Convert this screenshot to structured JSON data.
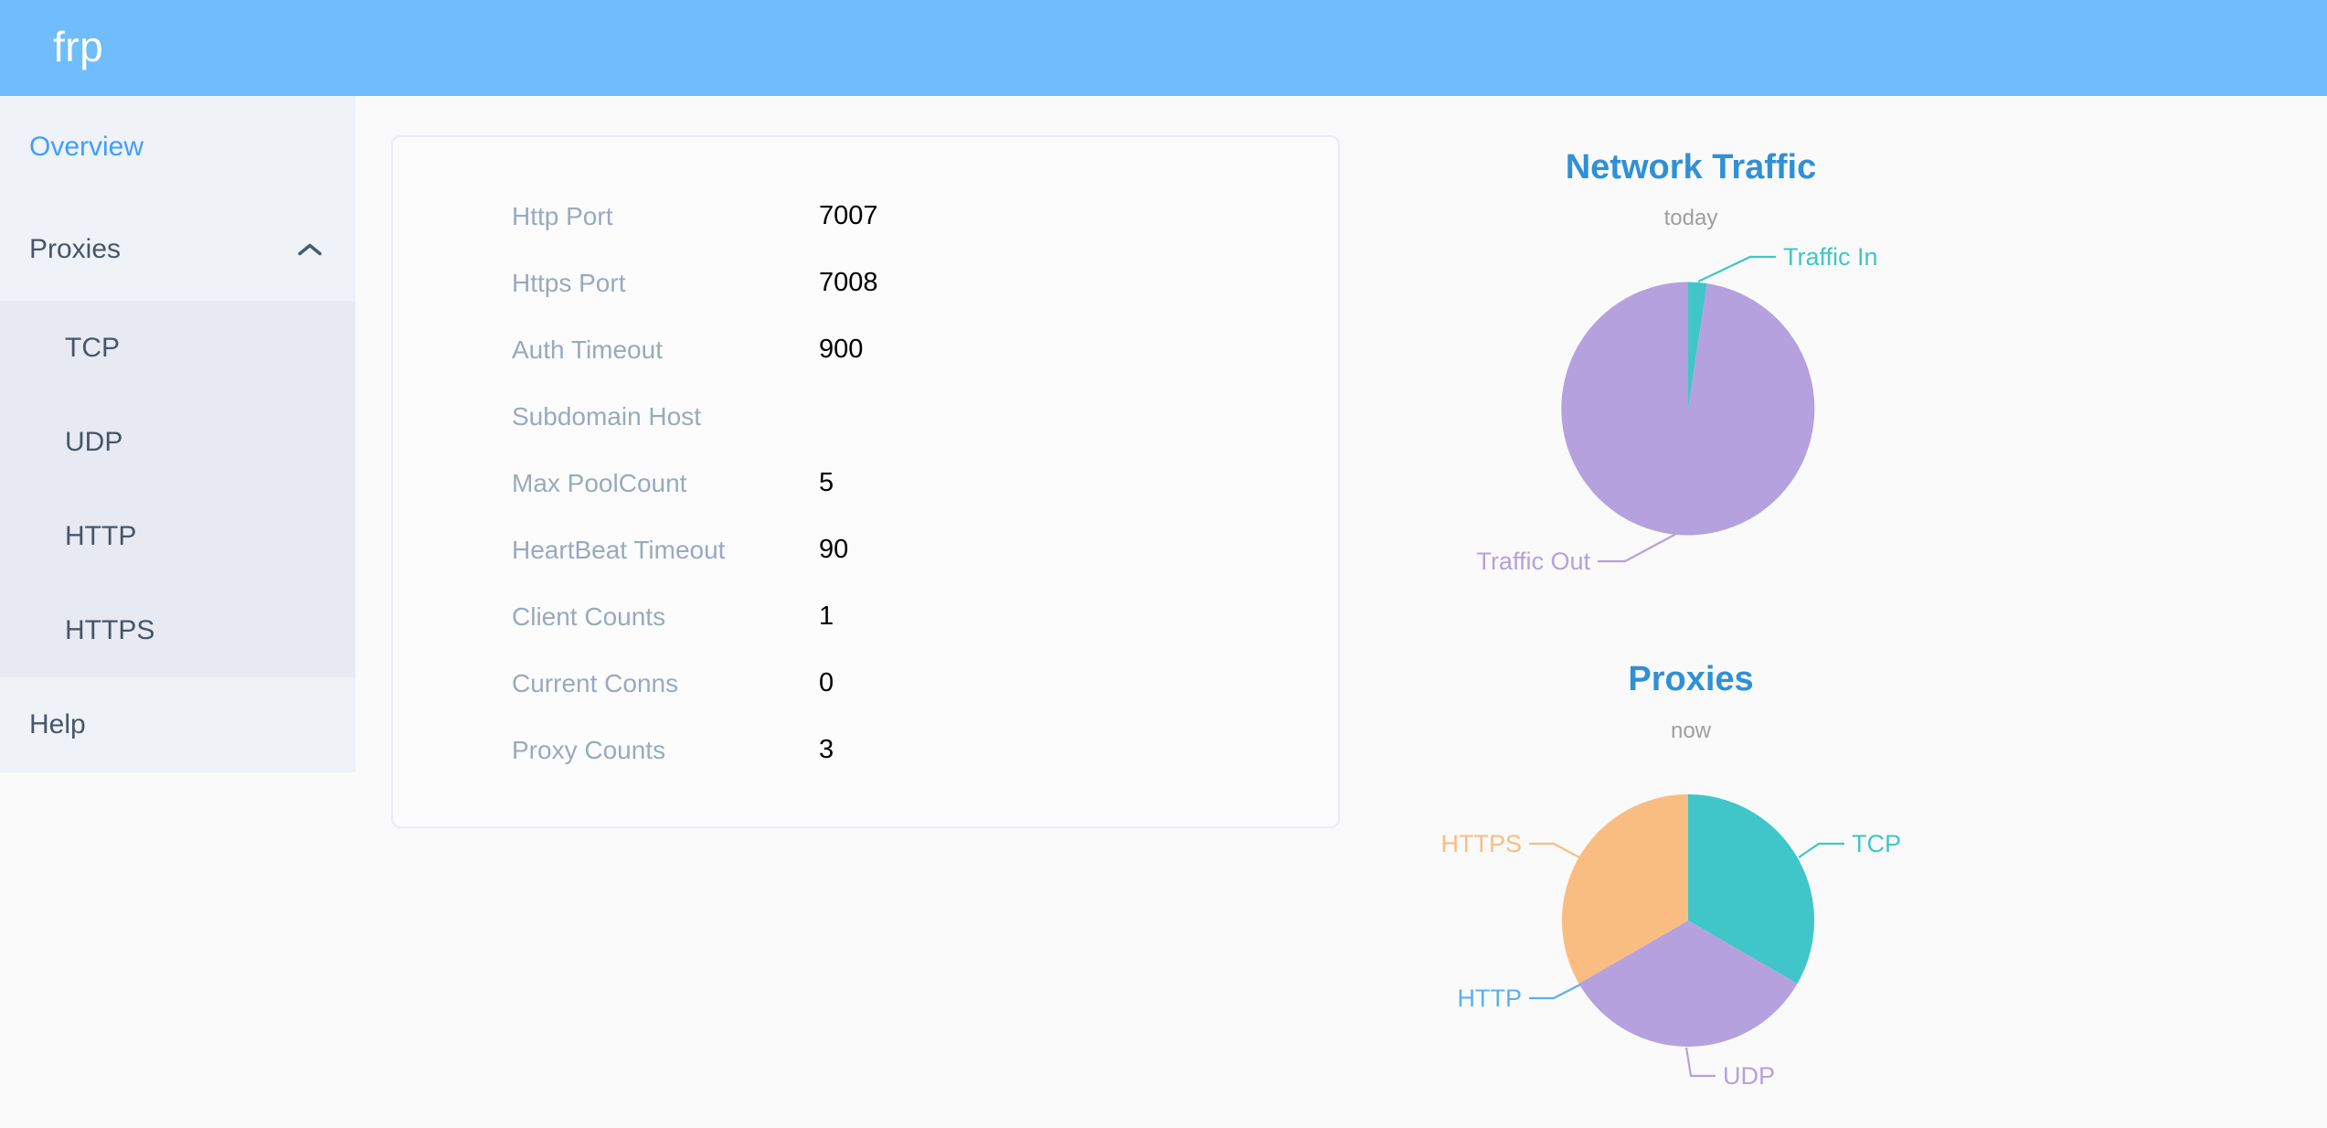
{
  "app": {
    "logo": "frp"
  },
  "colors": {
    "header_bg": "#6fbdfc",
    "sidebar_bg": "#eff2f6",
    "submenu_bg": "#e7eaf2",
    "active_link": "#409eff",
    "menu_text": "#475669",
    "chart_title_blue": "#2f90d8",
    "teal": "#40c6c8",
    "purple": "#b5a1dd",
    "blue": "#5ab1ef",
    "orange": "#fabd81"
  },
  "sidebar": {
    "overview_label": "Overview",
    "proxies_label": "Proxies",
    "proxies_children": [
      "TCP",
      "UDP",
      "HTTP",
      "HTTPS"
    ],
    "help_label": "Help"
  },
  "server_info": {
    "rows": [
      {
        "label": "Http Port",
        "value": "7007"
      },
      {
        "label": "Https Port",
        "value": "7008"
      },
      {
        "label": "Auth Timeout",
        "value": "900"
      },
      {
        "label": "Subdomain Host",
        "value": ""
      },
      {
        "label": "Max PoolCount",
        "value": "5"
      },
      {
        "label": "HeartBeat Timeout",
        "value": "90"
      },
      {
        "label": "Client Counts",
        "value": "1"
      },
      {
        "label": "Current Conns",
        "value": "0"
      },
      {
        "label": "Proxy Counts",
        "value": "3"
      }
    ]
  },
  "chart_data": [
    {
      "type": "pie",
      "title": "Network Traffic",
      "subtitle": "today",
      "legend": "none",
      "label_position": "outside",
      "value_unit": "percent-estimated-from-pixels",
      "series": [
        {
          "name": "Traffic In",
          "value": 2.4,
          "color": "#40c6c8"
        },
        {
          "name": "Traffic Out",
          "value": 97.6,
          "color": "#b5a1dd"
        }
      ]
    },
    {
      "type": "pie",
      "title": "Proxies",
      "subtitle": "now",
      "legend": "none",
      "label_position": "outside",
      "value_unit": "proxy-count",
      "series": [
        {
          "name": "TCP",
          "value": 1,
          "color": "#40c6c8"
        },
        {
          "name": "UDP",
          "value": 1,
          "color": "#b5a1dd"
        },
        {
          "name": "HTTP",
          "value": 0,
          "color": "#5ab1ef"
        },
        {
          "name": "HTTPS",
          "value": 1,
          "color": "#fabd81"
        }
      ]
    }
  ]
}
